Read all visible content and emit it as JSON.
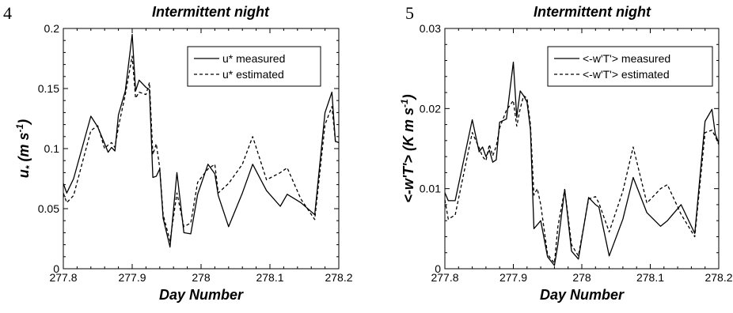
{
  "chart_data": [
    {
      "type": "line",
      "panel_label": "4",
      "title": "Intermittent night",
      "xlabel": "Day Number",
      "ylabel_main": "u",
      "ylabel_sub": "*",
      "ylabel_units": "(m s",
      "ylabel_exp": "-1",
      "ylabel_close": ")",
      "xlim": [
        277.8,
        278.2
      ],
      "ylim": [
        0,
        0.2
      ],
      "xticks": [
        "277.8",
        "277.9",
        "278",
        "278.1",
        "278.2"
      ],
      "xtick_values": [
        277.8,
        277.9,
        278.0,
        278.1,
        278.2
      ],
      "yticks": [
        "0",
        "0.05",
        "0.1",
        "0.15",
        "0.2"
      ],
      "ytick_values": [
        0,
        0.05,
        0.1,
        0.15,
        0.2
      ],
      "legend_position": "top-right",
      "grid": false,
      "series": [
        {
          "name": "u* measured",
          "style": "solid",
          "x": [
            277.8,
            277.805,
            277.815,
            277.84,
            277.85,
            277.86,
            277.865,
            277.87,
            277.875,
            277.88,
            277.89,
            277.9,
            277.905,
            277.91,
            277.92,
            277.925,
            277.93,
            277.935,
            277.94,
            277.945,
            277.955,
            277.965,
            277.975,
            277.985,
            277.995,
            278.01,
            278.02,
            278.025,
            278.04,
            278.06,
            278.075,
            278.095,
            278.115,
            278.125,
            278.145,
            278.165,
            278.18,
            278.19,
            278.195,
            278.2
          ],
          "y": [
            0.071,
            0.063,
            0.075,
            0.127,
            0.118,
            0.104,
            0.097,
            0.101,
            0.098,
            0.128,
            0.148,
            0.195,
            0.148,
            0.157,
            0.151,
            0.149,
            0.076,
            0.077,
            0.083,
            0.042,
            0.018,
            0.08,
            0.03,
            0.029,
            0.062,
            0.087,
            0.079,
            0.061,
            0.035,
            0.063,
            0.087,
            0.065,
            0.052,
            0.062,
            0.055,
            0.045,
            0.13,
            0.147,
            0.106,
            0.105
          ]
        },
        {
          "name": "u* estimated",
          "style": "dashed",
          "x": [
            277.8,
            277.805,
            277.815,
            277.84,
            277.85,
            277.86,
            277.865,
            277.87,
            277.875,
            277.88,
            277.89,
            277.9,
            277.905,
            277.91,
            277.92,
            277.925,
            277.93,
            277.935,
            277.94,
            277.945,
            277.955,
            277.965,
            277.975,
            277.985,
            277.995,
            278.01,
            278.02,
            278.025,
            278.04,
            278.06,
            278.075,
            278.095,
            278.115,
            278.125,
            278.145,
            278.165,
            278.18,
            278.19,
            278.195,
            278.2
          ],
          "y": [
            0.063,
            0.055,
            0.061,
            0.115,
            0.119,
            0.1,
            0.103,
            0.105,
            0.101,
            0.118,
            0.145,
            0.177,
            0.142,
            0.147,
            0.145,
            0.155,
            0.095,
            0.104,
            0.084,
            0.045,
            0.023,
            0.063,
            0.035,
            0.038,
            0.072,
            0.083,
            0.087,
            0.063,
            0.071,
            0.087,
            0.11,
            0.074,
            0.08,
            0.084,
            0.058,
            0.041,
            0.12,
            0.135,
            0.106,
            0.105
          ]
        }
      ]
    },
    {
      "type": "line",
      "panel_label": "5",
      "title": "Intermittent night",
      "xlabel": "Day Number",
      "ylabel_main": "<-w'T'>",
      "ylabel_units": "(K m s",
      "ylabel_exp": "-1",
      "ylabel_close": ")",
      "xlim": [
        277.8,
        278.2
      ],
      "ylim": [
        0,
        0.03
      ],
      "xticks": [
        "277.8",
        "277.9",
        "278",
        "278.1",
        "278.2"
      ],
      "xtick_values": [
        277.8,
        277.9,
        278.0,
        278.1,
        278.2
      ],
      "yticks": [
        "0",
        "0.01",
        "0.02",
        "0.03"
      ],
      "ytick_values": [
        0,
        0.01,
        0.02,
        0.03
      ],
      "legend_position": "top-right",
      "grid": false,
      "series": [
        {
          "name": "<-w'T'> measured",
          "style": "solid",
          "x": [
            277.8,
            277.805,
            277.815,
            277.84,
            277.85,
            277.855,
            277.86,
            277.865,
            277.87,
            277.875,
            277.88,
            277.89,
            277.9,
            277.905,
            277.91,
            277.915,
            277.92,
            277.925,
            277.93,
            277.935,
            277.94,
            277.95,
            277.96,
            277.965,
            277.975,
            277.985,
            277.995,
            278.01,
            278.02,
            278.025,
            278.04,
            278.06,
            278.075,
            278.095,
            278.115,
            278.125,
            278.145,
            278.165,
            278.18,
            278.19,
            278.195,
            278.2
          ],
          "y": [
            0.0095,
            0.0085,
            0.0085,
            0.0186,
            0.0146,
            0.0152,
            0.014,
            0.0148,
            0.0133,
            0.0136,
            0.0183,
            0.0187,
            0.0258,
            0.0189,
            0.0222,
            0.0216,
            0.0208,
            0.0174,
            0.005,
            0.0055,
            0.006,
            0.0015,
            0.0004,
            0.003,
            0.0099,
            0.0022,
            0.0012,
            0.0089,
            0.008,
            0.0077,
            0.0016,
            0.0062,
            0.0114,
            0.007,
            0.0053,
            0.006,
            0.008,
            0.0044,
            0.0184,
            0.0199,
            0.0168,
            0.0157
          ]
        },
        {
          "name": "<-w'T'> estimated",
          "style": "dashed",
          "x": [
            277.8,
            277.805,
            277.815,
            277.84,
            277.85,
            277.855,
            277.86,
            277.865,
            277.87,
            277.875,
            277.88,
            277.89,
            277.9,
            277.905,
            277.91,
            277.915,
            277.92,
            277.925,
            277.93,
            277.935,
            277.94,
            277.95,
            277.96,
            277.965,
            277.975,
            277.985,
            277.995,
            278.01,
            278.02,
            278.025,
            278.04,
            278.06,
            278.075,
            278.095,
            278.115,
            278.125,
            278.145,
            278.165,
            278.18,
            278.19,
            278.195,
            278.2
          ],
          "y": [
            0.0086,
            0.0062,
            0.0067,
            0.017,
            0.0151,
            0.014,
            0.0135,
            0.0155,
            0.0141,
            0.0153,
            0.0176,
            0.0198,
            0.021,
            0.0178,
            0.02,
            0.0216,
            0.0213,
            0.018,
            0.0092,
            0.01,
            0.008,
            0.0018,
            0.0007,
            0.0052,
            0.0099,
            0.003,
            0.0016,
            0.0087,
            0.009,
            0.0082,
            0.0046,
            0.0097,
            0.0152,
            0.0082,
            0.01,
            0.0105,
            0.0068,
            0.004,
            0.017,
            0.0173,
            0.0165,
            0.0155
          ]
        }
      ]
    }
  ]
}
